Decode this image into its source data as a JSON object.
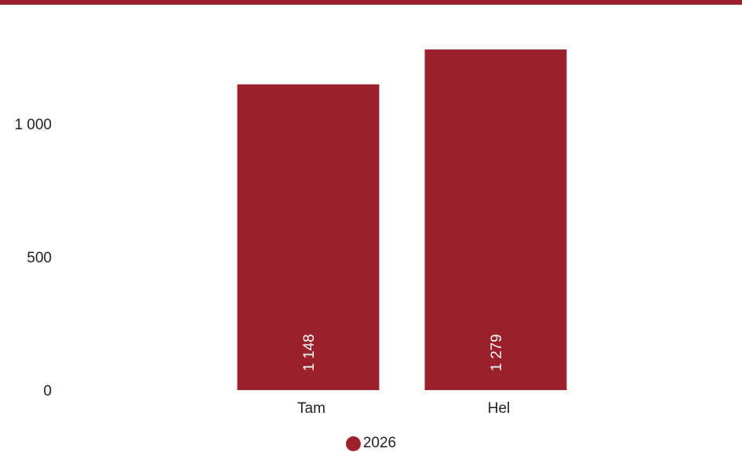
{
  "chart_data": {
    "type": "bar",
    "categories": [
      "Tam",
      "Hel"
    ],
    "series": [
      {
        "name": "2026",
        "values": [
          1148,
          1279
        ],
        "color": "#9b222c"
      }
    ],
    "data_labels": [
      "1 148",
      "1 279"
    ],
    "yticks": [
      0,
      500,
      1000
    ],
    "ytick_labels": [
      "0",
      "500",
      "1 000"
    ],
    "ylim": [
      0,
      1300
    ],
    "grid": false,
    "legend": "bottom-center"
  }
}
